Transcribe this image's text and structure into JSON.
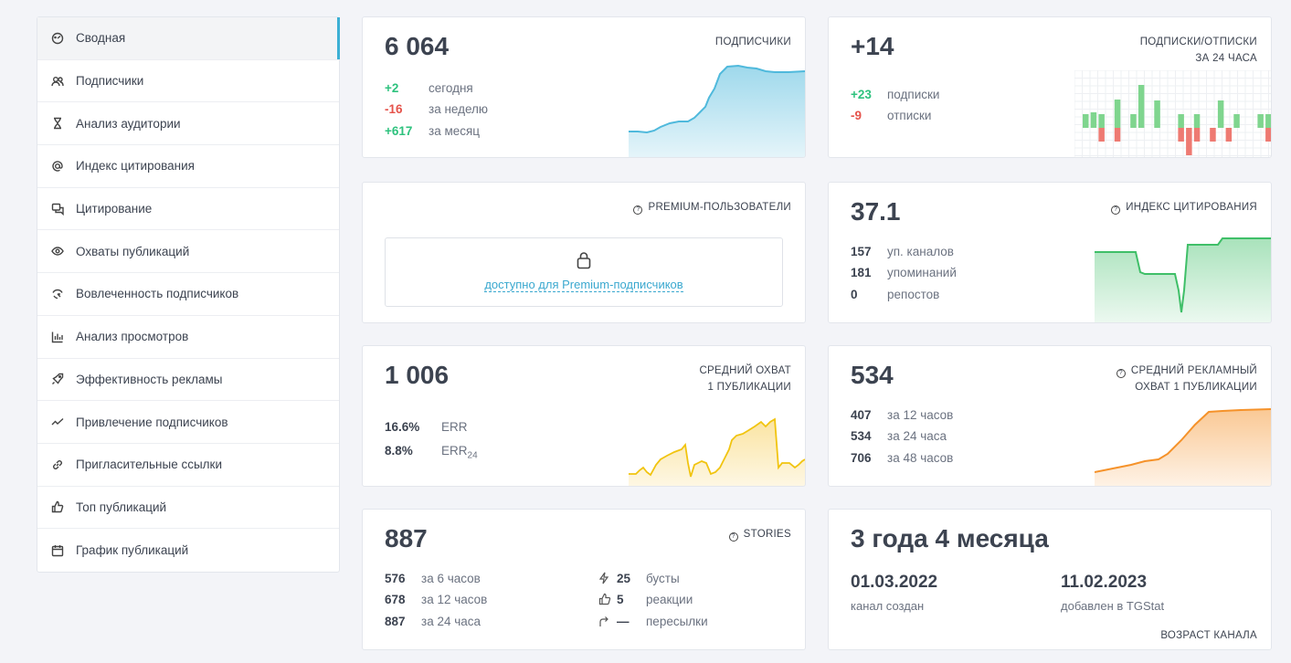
{
  "sidebar": {
    "items": [
      {
        "label": "Сводная",
        "icon": "dashboard-icon"
      },
      {
        "label": "Подписчики",
        "icon": "users-icon"
      },
      {
        "label": "Анализ аудитории",
        "icon": "hourglass-icon"
      },
      {
        "label": "Индекс цитирования",
        "icon": "at-icon"
      },
      {
        "label": "Цитирование",
        "icon": "quote-icon"
      },
      {
        "label": "Охваты публикаций",
        "icon": "eye-icon"
      },
      {
        "label": "Вовлеченность подписчиков",
        "icon": "engagement-icon"
      },
      {
        "label": "Анализ просмотров",
        "icon": "bar-chart-icon"
      },
      {
        "label": "Эффективность рекламы",
        "icon": "rocket-icon"
      },
      {
        "label": "Привлечение подписчиков",
        "icon": "trend-icon"
      },
      {
        "label": "Пригласительные ссылки",
        "icon": "link-icon"
      },
      {
        "label": "Топ публикаций",
        "icon": "thumbs-up-icon"
      },
      {
        "label": "График публикаций",
        "icon": "calendar-icon"
      }
    ]
  },
  "subscribers": {
    "value": "6 064",
    "caption": "ПОДПИСЧИКИ",
    "rows": [
      {
        "n": "+2",
        "t": "сегодня"
      },
      {
        "n": "-16",
        "t": "за неделю"
      },
      {
        "n": "+617",
        "t": "за месяц"
      }
    ]
  },
  "subs_unsubs": {
    "value": "+14",
    "caption1": "ПОДПИСКИ/ОТПИСКИ",
    "caption2": "ЗА 24 ЧАСА",
    "rows": [
      {
        "n": "+23",
        "t": "подписки"
      },
      {
        "n": "-9",
        "t": "отписки"
      }
    ]
  },
  "premium": {
    "caption": "PREMIUM-ПОЛЬЗОВАТЕЛИ",
    "link": "доступно для Premium-подписчиков"
  },
  "citation": {
    "value": "37.1",
    "caption": "ИНДЕКС ЦИТИРОВАНИЯ",
    "rows": [
      {
        "n": "157",
        "t": "уп. каналов"
      },
      {
        "n": "181",
        "t": "упоминаний"
      },
      {
        "n": "0",
        "t": "репостов"
      }
    ]
  },
  "reach": {
    "value": "1 006",
    "caption1": "СРЕДНИЙ ОХВАТ",
    "caption2": "1 ПУБЛИКАЦИИ",
    "rows": [
      {
        "n": "16.6%",
        "t": "ERR"
      },
      {
        "n": "8.8%",
        "t": "ERR",
        "sub": "24"
      }
    ]
  },
  "ad_reach": {
    "value": "534",
    "caption1": "СРЕДНИЙ РЕКЛАМНЫЙ",
    "caption2": "ОХВАТ 1 ПУБЛИКАЦИИ",
    "rows": [
      {
        "n": "407",
        "t": "за 12 часов"
      },
      {
        "n": "534",
        "t": "за 24 часа"
      },
      {
        "n": "706",
        "t": "за 48 часов"
      }
    ]
  },
  "stories": {
    "value": "887",
    "caption": "STORIES",
    "left": [
      {
        "n": "576",
        "t": "за 6 часов"
      },
      {
        "n": "678",
        "t": "за 12 часов"
      },
      {
        "n": "887",
        "t": "за 24 часа"
      }
    ],
    "right": [
      {
        "n": "25",
        "t": "бусты",
        "icon": "bolt-icon"
      },
      {
        "n": "5",
        "t": "реакции",
        "icon": "thumbs-up-icon"
      },
      {
        "n": "—",
        "t": "пересылки",
        "icon": "forward-icon"
      }
    ]
  },
  "age": {
    "value": "3 года 4 месяца",
    "created_date": "01.03.2022",
    "created_label": "канал создан",
    "added_date": "11.02.2023",
    "added_label": "добавлен в TGStat",
    "caption": "ВОЗРАСТ КАНАЛА"
  },
  "colors": {
    "accent": "#3cb0d4",
    "positive": "#2ec27e",
    "negative": "#e5534b",
    "blue_chart": "#4fb9dc",
    "green_chart": "#3fbf68",
    "yellow_chart": "#f1c40f",
    "orange_chart": "#f5922a"
  }
}
